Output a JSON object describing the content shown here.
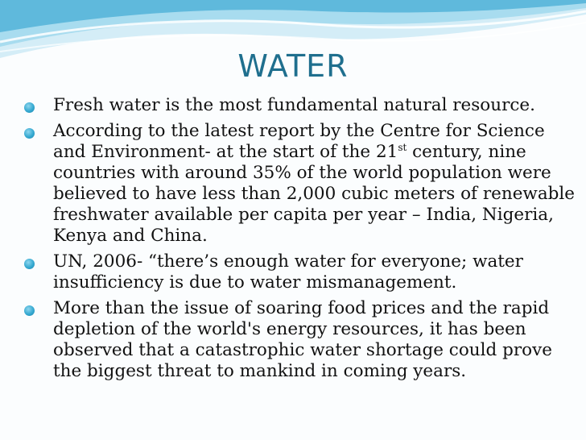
{
  "title": "WATER",
  "bullets": [
    {
      "text": "Fresh water is the most fundamental natural resource."
    },
    {
      "text_before_sup": "According to the latest report by the Centre for Science and Environment- at the start of the 21",
      "sup": "st",
      "text_after_sup": " century, nine countries with around 35% of the world population were believed to have less than 2,000 cubic meters of renewable freshwater available per capita per year – India, Nigeria, Kenya and China."
    },
    {
      "text": "UN, 2006- “there’s enough water for everyone; water insufficiency is due to water mismanagement."
    },
    {
      "text": "More than the issue of soaring food prices and the rapid depletion of the world's energy resources, it has been observed that a catastrophic water shortage could prove the biggest threat to mankind in coming years."
    }
  ],
  "colors": {
    "title": "#1f6f8e",
    "bullet": "#35a9d1",
    "wave_light": "#d4edf7",
    "wave_mid": "#a8dcef",
    "wave_dark": "#5fb9dc"
  }
}
